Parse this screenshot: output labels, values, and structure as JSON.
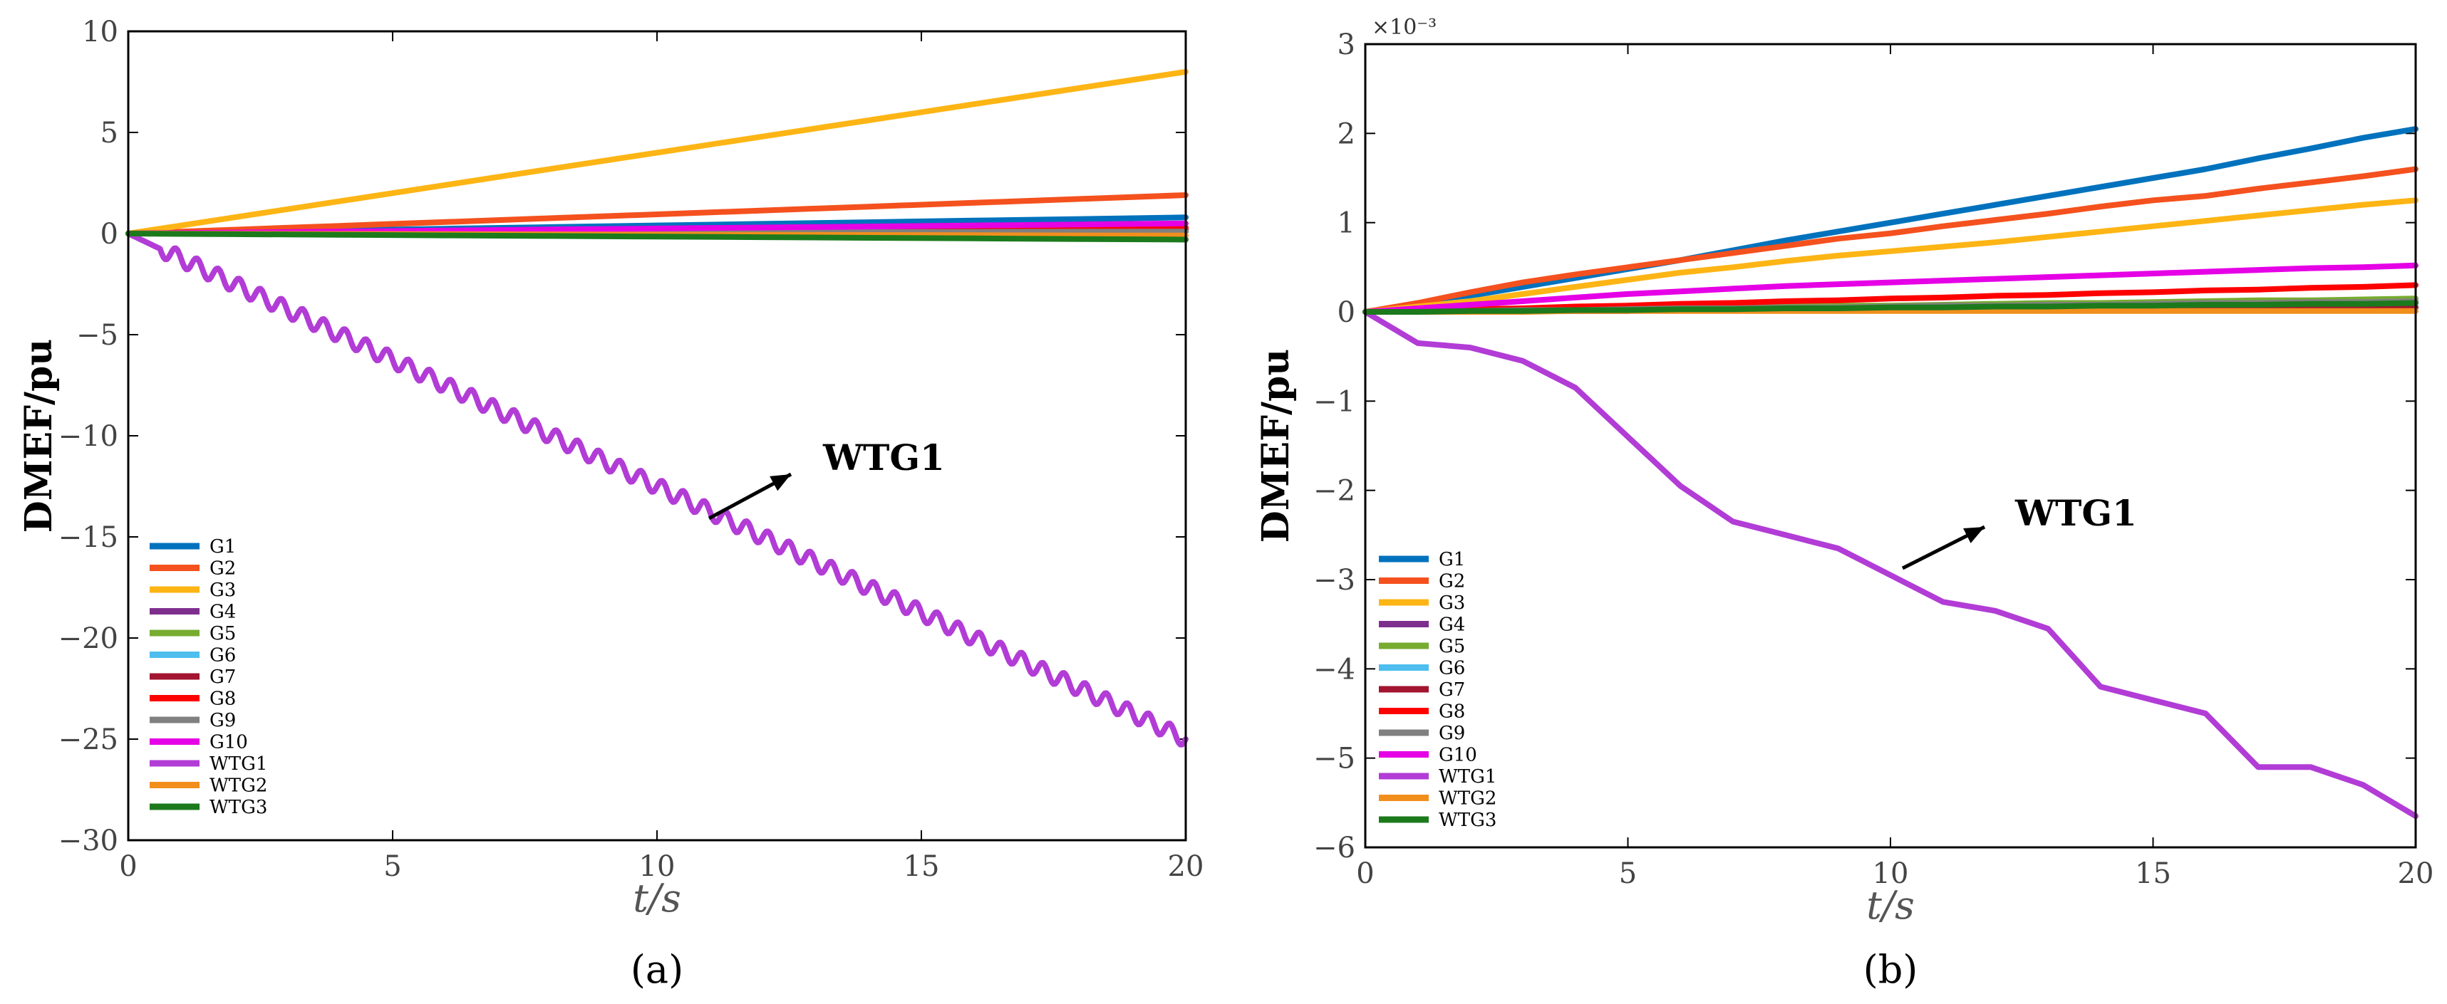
{
  "chart_data": [
    {
      "type": "line",
      "caption": "(a)",
      "xlabel": "t/s",
      "ylabel": "DMEF/pu",
      "xlim": [
        0,
        20
      ],
      "ylim": [
        -30,
        10
      ],
      "xticks": [
        0,
        5,
        10,
        15,
        20
      ],
      "yticks": [
        -30,
        -25,
        -20,
        -15,
        -10,
        -5,
        0,
        5,
        10
      ],
      "annotation": "WTG1",
      "x": [
        0,
        2,
        4,
        6,
        8,
        10,
        12,
        14,
        16,
        18,
        20
      ],
      "series": [
        {
          "name": "G1",
          "color": "#0072BD",
          "values": [
            0,
            0.08,
            0.16,
            0.24,
            0.32,
            0.4,
            0.48,
            0.56,
            0.64,
            0.72,
            0.8
          ]
        },
        {
          "name": "G2",
          "color": "#F4511E",
          "values": [
            0,
            0.19,
            0.38,
            0.57,
            0.76,
            0.95,
            1.14,
            1.33,
            1.52,
            1.71,
            1.9
          ]
        },
        {
          "name": "G3",
          "color": "#FDB515",
          "values": [
            0,
            0.8,
            1.6,
            2.4,
            3.2,
            4.0,
            4.8,
            5.6,
            6.4,
            7.2,
            8.0
          ]
        },
        {
          "name": "G4",
          "color": "#7E2F8E",
          "values": [
            0,
            0.02,
            0.04,
            0.06,
            0.08,
            0.1,
            0.12,
            0.14,
            0.16,
            0.18,
            0.2
          ]
        },
        {
          "name": "G5",
          "color": "#77AC30",
          "values": [
            0,
            0.02,
            0.03,
            0.05,
            0.06,
            0.08,
            0.09,
            0.11,
            0.12,
            0.14,
            0.15
          ]
        },
        {
          "name": "G6",
          "color": "#4DBEEE",
          "values": [
            0,
            0.01,
            0.02,
            0.03,
            0.04,
            0.05,
            0.06,
            0.07,
            0.08,
            0.09,
            0.1
          ]
        },
        {
          "name": "G7",
          "color": "#A2142F",
          "values": [
            0,
            0.02,
            0.04,
            0.06,
            0.08,
            0.1,
            0.12,
            0.14,
            0.16,
            0.18,
            0.2
          ]
        },
        {
          "name": "G8",
          "color": "#FF0000",
          "values": [
            0,
            0.03,
            0.06,
            0.09,
            0.12,
            0.15,
            0.18,
            0.21,
            0.24,
            0.27,
            0.3
          ]
        },
        {
          "name": "G9",
          "color": "#808080",
          "values": [
            0,
            0.01,
            0.02,
            0.03,
            0.04,
            0.05,
            0.06,
            0.07,
            0.08,
            0.09,
            0.1
          ]
        },
        {
          "name": "G10",
          "color": "#E500E5",
          "values": [
            0,
            0.05,
            0.1,
            0.15,
            0.2,
            0.25,
            0.3,
            0.35,
            0.4,
            0.45,
            0.5
          ]
        },
        {
          "name": "WTG1",
          "color": "#B23CD6",
          "values": [
            0,
            -2.5,
            -5.0,
            -7.5,
            -10.0,
            -12.5,
            -15.0,
            -17.5,
            -20.0,
            -22.5,
            -25.0
          ],
          "ripple": 0.4
        },
        {
          "name": "WTG2",
          "color": "#F28E1C",
          "values": [
            0,
            -0.01,
            -0.02,
            -0.03,
            -0.04,
            -0.05,
            -0.06,
            -0.07,
            -0.08,
            -0.09,
            -0.1
          ]
        },
        {
          "name": "WTG3",
          "color": "#1C7A1C",
          "values": [
            0,
            -0.03,
            -0.06,
            -0.09,
            -0.12,
            -0.15,
            -0.18,
            -0.21,
            -0.24,
            -0.27,
            -0.3
          ]
        }
      ]
    },
    {
      "type": "line",
      "caption": "(b)",
      "xlabel": "t/s",
      "ylabel": "DMEF/pu",
      "multiplier": "×10⁻³",
      "xlim": [
        0,
        20
      ],
      "ylim": [
        -6,
        3
      ],
      "xticks": [
        0,
        5,
        10,
        15,
        20
      ],
      "yticks": [
        -6,
        -5,
        -4,
        -3,
        -2,
        -1,
        0,
        1,
        2,
        3
      ],
      "annotation": "WTG1",
      "x": [
        0,
        1,
        2,
        3,
        4,
        5,
        6,
        7,
        8,
        9,
        10,
        11,
        12,
        13,
        14,
        15,
        16,
        17,
        18,
        19,
        20
      ],
      "series": [
        {
          "name": "G1",
          "color": "#0072BD",
          "values": [
            0,
            0.08,
            0.18,
            0.28,
            0.38,
            0.48,
            0.58,
            0.69,
            0.8,
            0.9,
            1.0,
            1.1,
            1.2,
            1.3,
            1.4,
            1.5,
            1.6,
            1.72,
            1.83,
            1.95,
            2.05
          ]
        },
        {
          "name": "G2",
          "color": "#F4511E",
          "values": [
            0,
            0.1,
            0.22,
            0.33,
            0.42,
            0.5,
            0.58,
            0.66,
            0.74,
            0.82,
            0.88,
            0.96,
            1.03,
            1.1,
            1.18,
            1.25,
            1.3,
            1.38,
            1.45,
            1.52,
            1.6
          ]
        },
        {
          "name": "G3",
          "color": "#FDB515",
          "values": [
            0,
            0.06,
            0.12,
            0.2,
            0.28,
            0.36,
            0.44,
            0.5,
            0.57,
            0.63,
            0.68,
            0.73,
            0.78,
            0.84,
            0.9,
            0.96,
            1.02,
            1.08,
            1.14,
            1.2,
            1.25
          ]
        },
        {
          "name": "G4",
          "color": "#7E2F8E",
          "values": [
            0,
            0.0,
            0.01,
            0.01,
            0.02,
            0.02,
            0.03,
            0.03,
            0.04,
            0.04,
            0.05,
            0.05,
            0.06,
            0.06,
            0.07,
            0.07,
            0.08,
            0.08,
            0.09,
            0.09,
            0.1
          ]
        },
        {
          "name": "G5",
          "color": "#77AC30",
          "values": [
            0,
            0.01,
            0.01,
            0.02,
            0.03,
            0.04,
            0.04,
            0.05,
            0.06,
            0.07,
            0.07,
            0.08,
            0.09,
            0.1,
            0.1,
            0.11,
            0.12,
            0.13,
            0.13,
            0.14,
            0.15
          ]
        },
        {
          "name": "G6",
          "color": "#4DBEEE",
          "values": [
            0,
            0.0,
            0.01,
            0.01,
            0.01,
            0.02,
            0.02,
            0.02,
            0.03,
            0.03,
            0.03,
            0.03,
            0.04,
            0.04,
            0.04,
            0.05,
            0.05,
            0.05,
            0.06,
            0.06,
            0.06
          ]
        },
        {
          "name": "G7",
          "color": "#A2142F",
          "values": [
            0,
            0.0,
            0.01,
            0.01,
            0.01,
            0.01,
            0.02,
            0.02,
            0.02,
            0.03,
            0.03,
            0.03,
            0.03,
            0.04,
            0.04,
            0.04,
            0.04,
            0.05,
            0.05,
            0.05,
            0.05
          ]
        },
        {
          "name": "G8",
          "color": "#FF0000",
          "values": [
            0,
            0.01,
            0.03,
            0.04,
            0.06,
            0.07,
            0.09,
            0.1,
            0.12,
            0.13,
            0.15,
            0.16,
            0.18,
            0.19,
            0.21,
            0.22,
            0.24,
            0.25,
            0.27,
            0.28,
            0.3
          ]
        },
        {
          "name": "G9",
          "color": "#808080",
          "values": [
            0,
            0.01,
            0.01,
            0.02,
            0.02,
            0.03,
            0.04,
            0.04,
            0.05,
            0.05,
            0.06,
            0.07,
            0.07,
            0.08,
            0.08,
            0.09,
            0.1,
            0.1,
            0.11,
            0.11,
            0.12
          ]
        },
        {
          "name": "G10",
          "color": "#E500E5",
          "values": [
            0,
            0.04,
            0.08,
            0.12,
            0.16,
            0.2,
            0.23,
            0.26,
            0.29,
            0.31,
            0.33,
            0.35,
            0.37,
            0.39,
            0.41,
            0.43,
            0.45,
            0.47,
            0.49,
            0.5,
            0.52
          ]
        },
        {
          "name": "WTG1",
          "color": "#B23CD6",
          "values": [
            0,
            -0.35,
            -0.4,
            -0.55,
            -0.85,
            -1.4,
            -1.95,
            -2.35,
            -2.5,
            -2.65,
            -2.95,
            -3.25,
            -3.35,
            -3.55,
            -4.2,
            -4.35,
            -4.5,
            -5.1,
            -5.1,
            -5.3,
            -5.65
          ]
        },
        {
          "name": "WTG2",
          "color": "#F28E1C",
          "values": [
            0,
            0.0,
            0.0,
            0.0,
            0.01,
            0.01,
            0.01,
            0.01,
            0.01,
            0.01,
            0.01,
            0.01,
            0.01,
            0.01,
            0.01,
            0.01,
            0.01,
            0.01,
            0.01,
            0.01,
            0.01
          ]
        },
        {
          "name": "WTG3",
          "color": "#1C7A1C",
          "values": [
            0,
            0.0,
            0.01,
            0.01,
            0.02,
            0.02,
            0.03,
            0.03,
            0.04,
            0.04,
            0.05,
            0.05,
            0.06,
            0.06,
            0.07,
            0.07,
            0.08,
            0.08,
            0.09,
            0.09,
            0.1
          ]
        }
      ]
    }
  ]
}
